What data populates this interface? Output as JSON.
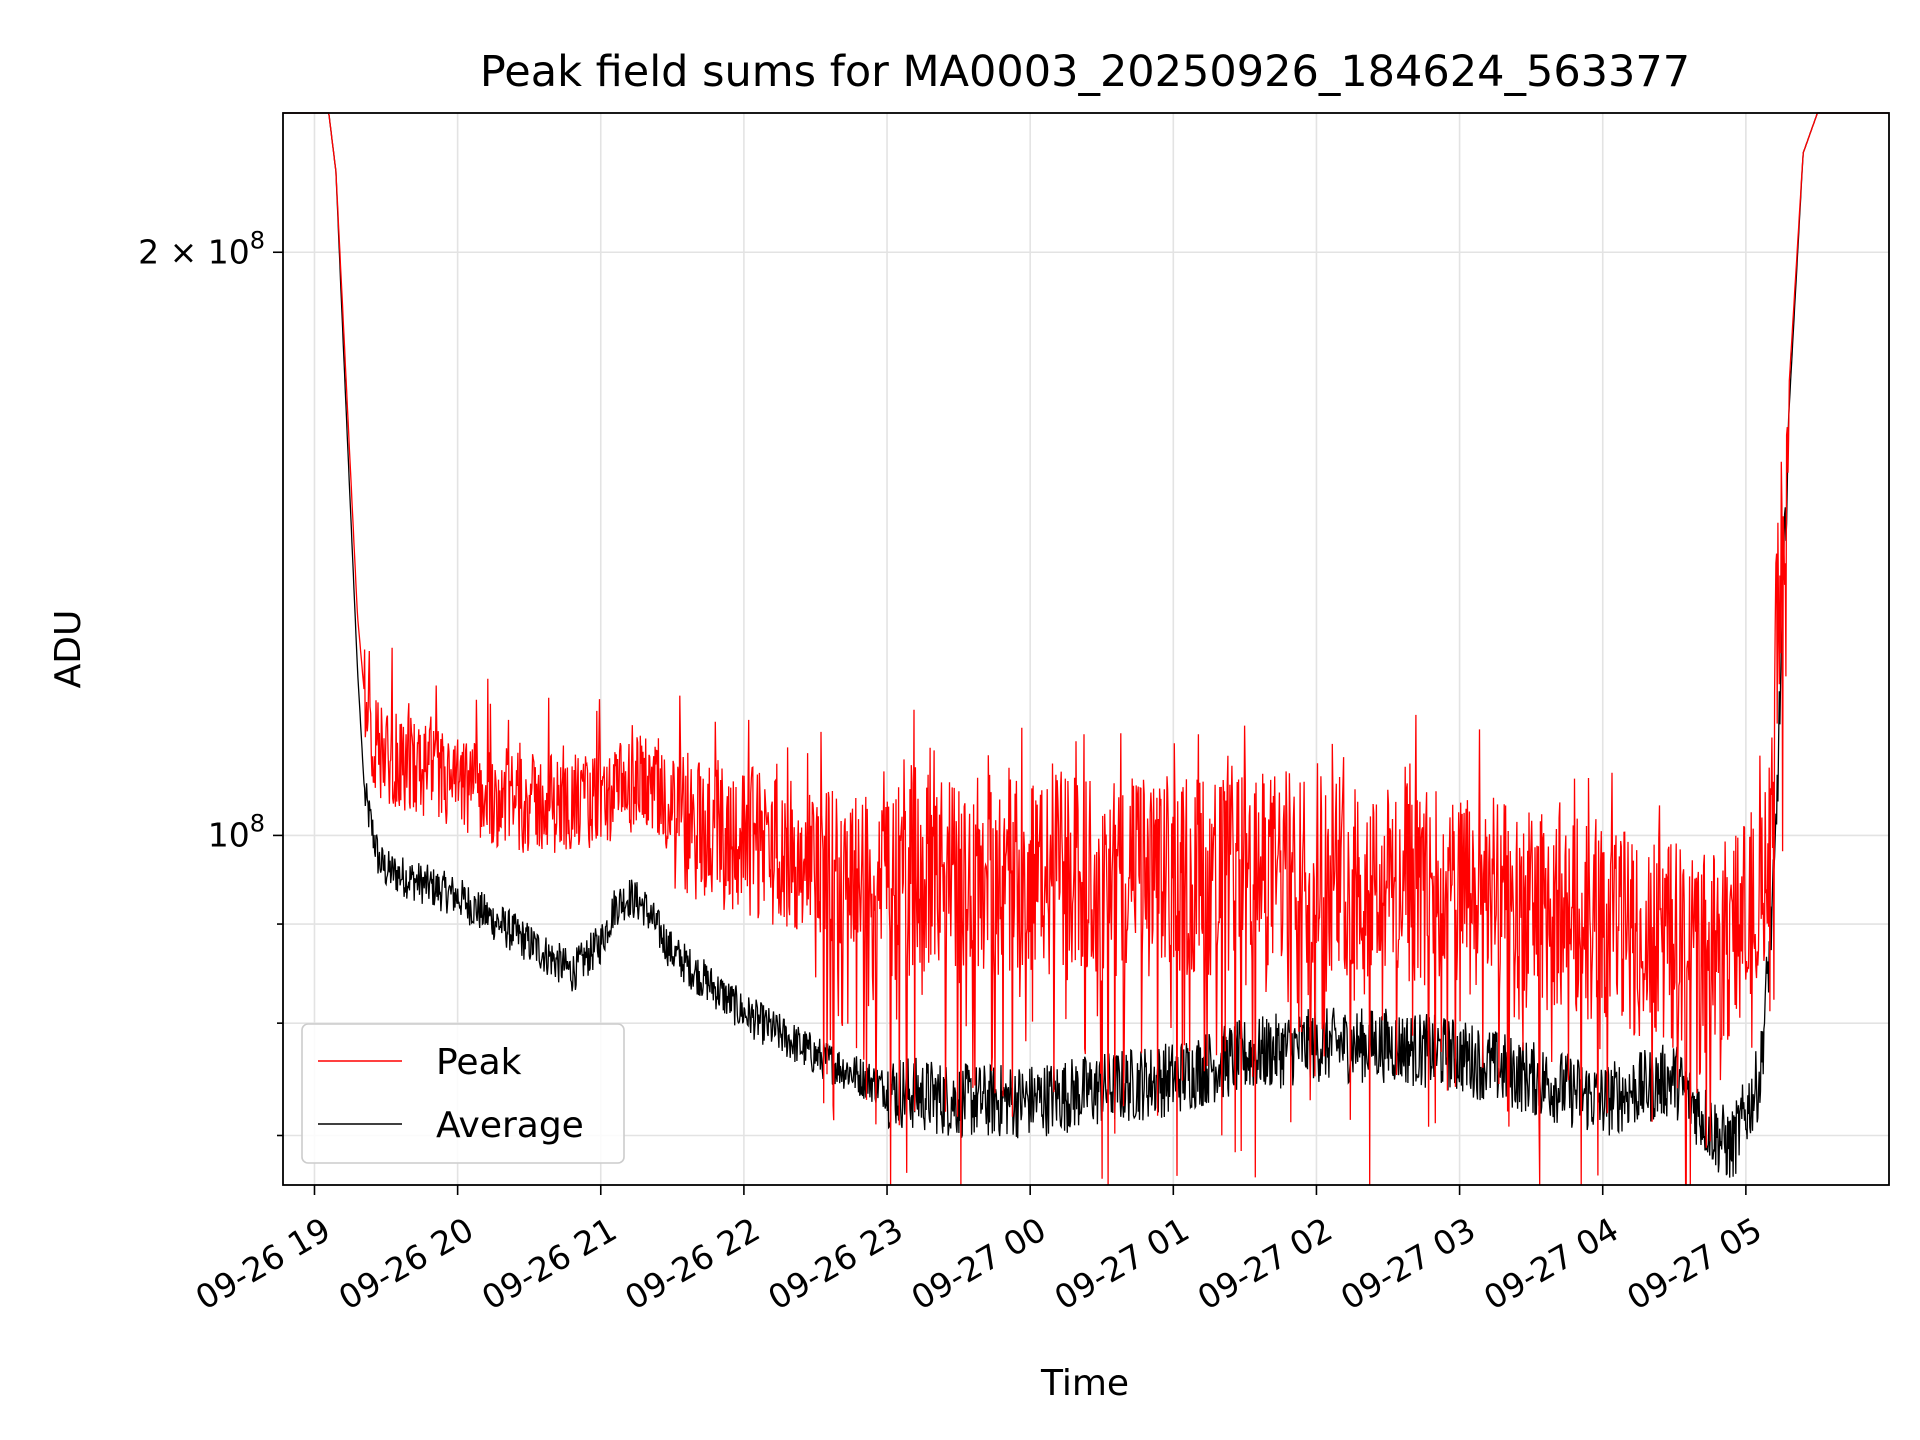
{
  "chart_data": {
    "type": "line",
    "title": "Peak field sums for MA0003_20250926_184624_563377",
    "xlabel": "Time",
    "ylabel": "ADU",
    "y_scale": "log",
    "xlim_hours": [
      -0.22,
      11.0
    ],
    "ylim": [
      66000000,
      236000000
    ],
    "x_ticks": [
      {
        "label": "09-26 19",
        "hour": 0
      },
      {
        "label": "09-26 20",
        "hour": 1
      },
      {
        "label": "09-26 21",
        "hour": 2
      },
      {
        "label": "09-26 22",
        "hour": 3
      },
      {
        "label": "09-26 23",
        "hour": 4
      },
      {
        "label": "09-27 00",
        "hour": 5
      },
      {
        "label": "09-27 01",
        "hour": 6
      },
      {
        "label": "09-27 02",
        "hour": 7
      },
      {
        "label": "09-27 03",
        "hour": 8
      },
      {
        "label": "09-27 04",
        "hour": 9
      },
      {
        "label": "09-27 05",
        "hour": 10
      }
    ],
    "y_ticks_major": [
      {
        "base": "2",
        "times": "×",
        "power_base": "10",
        "exponent": "8",
        "value": 200000000
      },
      {
        "base": "",
        "times": "",
        "power_base": "10",
        "exponent": "8",
        "value": 100000000
      }
    ],
    "y_ticks_minor": [
      70000000,
      80000000,
      90000000
    ],
    "grid": true,
    "legend": {
      "position": "lower-left",
      "entries": [
        "Peak",
        "Average"
      ]
    },
    "series": [
      {
        "name": "Peak",
        "color": "#ff0000",
        "x_hours": [
          -0.2,
          0.1,
          0.15,
          0.2,
          0.3,
          0.35,
          0.4,
          0.5,
          0.75,
          1.0,
          1.5,
          2.0,
          2.2,
          2.3,
          2.5,
          3.0,
          3.5,
          4.0,
          4.5,
          5.0,
          5.5,
          6.0,
          6.5,
          7.0,
          7.5,
          8.0,
          8.5,
          9.0,
          9.3,
          9.6,
          9.9,
          10.15,
          10.2,
          10.3,
          10.4,
          10.5,
          11.0
        ],
        "values": [
          236000000,
          236000000,
          220000000,
          185000000,
          130000000,
          118000000,
          112000000,
          110000000,
          108000000,
          106000000,
          104000000,
          104000000,
          106000000,
          107000000,
          102000000,
          100000000,
          97000000,
          96000000,
          96000000,
          96000000,
          96000000,
          96000000,
          96000000,
          97000000,
          95000000,
          94000000,
          92000000,
          91000000,
          89000000,
          88000000,
          89000000,
          95000000,
          120000000,
          170000000,
          225000000,
          236000000,
          236000000
        ]
      },
      {
        "name": "Average",
        "color": "#000000",
        "x_hours": [
          -0.2,
          0.1,
          0.15,
          0.2,
          0.3,
          0.35,
          0.45,
          0.5,
          1.0,
          1.5,
          1.8,
          2.0,
          2.1,
          2.2,
          2.3,
          2.5,
          3.0,
          3.5,
          4.0,
          4.5,
          5.0,
          5.5,
          6.0,
          6.5,
          7.0,
          7.5,
          8.0,
          8.5,
          9.0,
          9.5,
          9.8,
          9.9,
          10.1,
          10.2,
          10.3,
          10.4,
          10.5,
          11.0
        ],
        "values": [
          236000000,
          236000000,
          220000000,
          180000000,
          122000000,
          105000000,
          97000000,
          96000000,
          93000000,
          88000000,
          85000000,
          88000000,
          92000000,
          93000000,
          92000000,
          87000000,
          81000000,
          77000000,
          74000000,
          73000000,
          73000000,
          74000000,
          75000000,
          77000000,
          78000000,
          78000000,
          77000000,
          75000000,
          73000000,
          75000000,
          70000000,
          69000000,
          75000000,
          95000000,
          165000000,
          225000000,
          236000000,
          236000000
        ]
      }
    ]
  }
}
